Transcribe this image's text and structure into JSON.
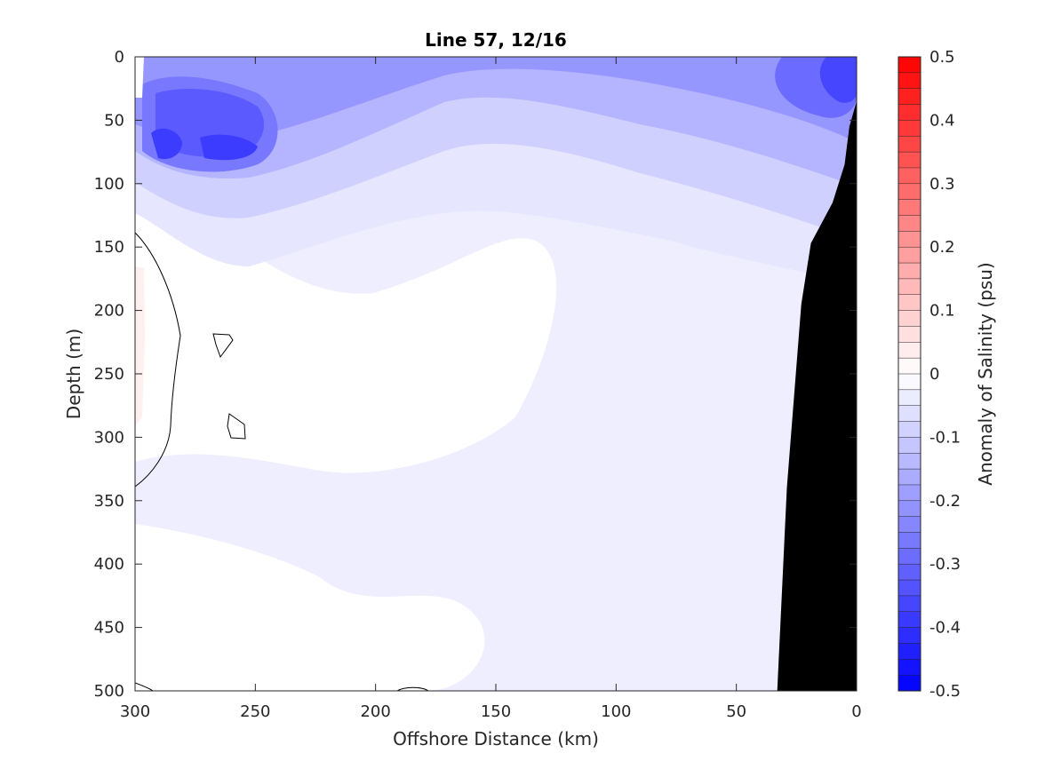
{
  "chart_data": {
    "type": "heatmap",
    "title": "Line 57, 12/16",
    "xlabel": "Offshore Distance (km)",
    "ylabel": "Depth (m)",
    "xlim": [
      300,
      0
    ],
    "ylim": [
      0,
      500
    ],
    "x_reversed": true,
    "y_reversed": true,
    "x_ticks": [
      300,
      250,
      200,
      150,
      100,
      50,
      0
    ],
    "y_ticks": [
      0,
      50,
      100,
      150,
      200,
      250,
      300,
      350,
      400,
      450,
      500
    ],
    "colorbar": {
      "label": "Anomaly of Salinity (psu)",
      "range": [
        -0.5,
        0.5
      ],
      "ticks": [
        0.5,
        0.4,
        0.3,
        0.2,
        0.1,
        0,
        -0.1,
        -0.2,
        -0.3,
        -0.4,
        -0.5
      ],
      "levels": 40,
      "colormap": "blue-white-red"
    },
    "colors": {
      "negative": "#0000ff",
      "positive": "#ff0000",
      "zero": "#ffffff",
      "bathymetry": "#000000"
    },
    "bathymetry_profile": [
      {
        "distance_km": 0,
        "depth_m": 35
      },
      {
        "distance_km": 3,
        "depth_m": 55
      },
      {
        "distance_km": 5,
        "depth_m": 85
      },
      {
        "distance_km": 10,
        "depth_m": 115
      },
      {
        "distance_km": 19,
        "depth_m": 147
      },
      {
        "distance_km": 23,
        "depth_m": 195
      },
      {
        "distance_km": 29,
        "depth_m": 340
      },
      {
        "distance_km": 33,
        "depth_m": 500
      }
    ],
    "anomaly_features": [
      {
        "region": "subsurface core",
        "distance_km": 290,
        "depth_m": 72,
        "anomaly_psu": -0.32
      },
      {
        "region": "subsurface core",
        "distance_km": 262,
        "depth_m": 72,
        "anomaly_psu": -0.3
      },
      {
        "region": "surface",
        "distance_km": 150,
        "depth_m": 35,
        "anomaly_psu": -0.22
      },
      {
        "region": "nearshore surface",
        "distance_km": 3,
        "depth_m": 25,
        "anomaly_psu": -0.4
      },
      {
        "region": "deep interior",
        "distance_km": 100,
        "depth_m": 300,
        "anomaly_psu": -0.03
      },
      {
        "region": "offshore edge",
        "distance_km": 298,
        "depth_m": 230,
        "anomaly_psu": 0.01
      }
    ]
  }
}
